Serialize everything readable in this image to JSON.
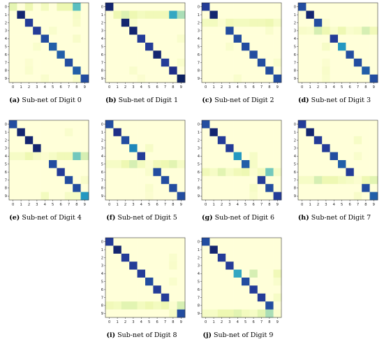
{
  "colormap": [
    "#ffffd9",
    "#edf8b1",
    "#c7e9b4",
    "#7fcdbb",
    "#41b6c4",
    "#1d91c0",
    "#225ea8",
    "#253494",
    "#081d58"
  ],
  "tick_labels": [
    "0",
    "1",
    "2",
    "3",
    "4",
    "5",
    "6",
    "7",
    "8",
    "9"
  ],
  "chart_data": [
    {
      "type": "heatmap",
      "tag": "(a)",
      "title": "Sub-net of Digit 0",
      "x_tick_labels": [
        "0",
        "1",
        "2",
        "3",
        "4",
        "5",
        "6",
        "7",
        "8",
        "9"
      ],
      "y_tick_labels": [
        "0",
        "1",
        "2",
        "3",
        "4",
        "5",
        "6",
        "7",
        "8",
        "9"
      ],
      "diagonal": [
        0.15,
        0.95,
        0.85,
        0.85,
        0.8,
        0.75,
        0.75,
        0.8,
        0.75,
        0.8
      ],
      "off_diagonal": [
        [
          0,
          8,
          0.45
        ],
        [
          0,
          2,
          0.12
        ],
        [
          0,
          6,
          0.12
        ],
        [
          0,
          7,
          0.12
        ],
        [
          0,
          4,
          0.08
        ],
        [
          1,
          8,
          0.06
        ],
        [
          2,
          8,
          0.05
        ],
        [
          4,
          8,
          0.05
        ],
        [
          3,
          5,
          0.04
        ],
        [
          5,
          3,
          0.04
        ],
        [
          8,
          2,
          0.04
        ],
        [
          9,
          4,
          0.04
        ],
        [
          9,
          8,
          0.05
        ],
        [
          7,
          2,
          0.03
        ]
      ]
    },
    {
      "type": "heatmap",
      "tag": "(b)",
      "title": "Sub-net of Digit 1",
      "x_tick_labels": [
        "0",
        "1",
        "2",
        "3",
        "4",
        "5",
        "6",
        "7",
        "8",
        "9"
      ],
      "y_tick_labels": [
        "0",
        "1",
        "2",
        "3",
        "4",
        "5",
        "6",
        "7",
        "8",
        "9"
      ],
      "diagonal": [
        0.95,
        0.12,
        0.95,
        0.95,
        0.85,
        0.85,
        0.95,
        0.85,
        0.9,
        0.98
      ],
      "off_diagonal": [
        [
          1,
          8,
          0.55
        ],
        [
          1,
          9,
          0.3
        ],
        [
          1,
          2,
          0.18
        ],
        [
          1,
          3,
          0.12
        ],
        [
          1,
          6,
          0.1
        ],
        [
          1,
          7,
          0.1
        ],
        [
          1,
          4,
          0.08
        ],
        [
          1,
          5,
          0.1
        ],
        [
          2,
          3,
          0.04
        ],
        [
          4,
          9,
          0.04
        ],
        [
          7,
          9,
          0.04
        ],
        [
          8,
          3,
          0.04
        ],
        [
          9,
          4,
          0.03
        ]
      ]
    },
    {
      "type": "heatmap",
      "tag": "(c)",
      "title": "Sub-net of Digit 2",
      "x_tick_labels": [
        "0",
        "1",
        "2",
        "3",
        "4",
        "5",
        "6",
        "7",
        "8",
        "9"
      ],
      "y_tick_labels": [
        "0",
        "1",
        "2",
        "3",
        "4",
        "5",
        "6",
        "7",
        "8",
        "9"
      ],
      "diagonal": [
        0.85,
        0.95,
        0.03,
        0.8,
        0.8,
        0.8,
        0.8,
        0.8,
        0.8,
        0.8
      ],
      "off_diagonal": [
        [
          2,
          0,
          0.08
        ],
        [
          2,
          1,
          0.08
        ],
        [
          2,
          3,
          0.1
        ],
        [
          2,
          4,
          0.08
        ],
        [
          2,
          5,
          0.08
        ],
        [
          2,
          6,
          0.1
        ],
        [
          2,
          7,
          0.1
        ],
        [
          2,
          8,
          0.12
        ],
        [
          2,
          9,
          0.06
        ],
        [
          3,
          8,
          0.04
        ],
        [
          5,
          3,
          0.04
        ],
        [
          7,
          9,
          0.04
        ],
        [
          9,
          4,
          0.04
        ]
      ]
    },
    {
      "type": "heatmap",
      "tag": "(d)",
      "title": "Sub-net of Digit 3",
      "x_tick_labels": [
        "0",
        "1",
        "2",
        "3",
        "4",
        "5",
        "6",
        "7",
        "8",
        "9"
      ],
      "y_tick_labels": [
        "0",
        "1",
        "2",
        "3",
        "4",
        "5",
        "6",
        "7",
        "8",
        "9"
      ],
      "diagonal": [
        0.8,
        0.95,
        0.8,
        0.12,
        0.85,
        0.6,
        0.8,
        0.8,
        0.75,
        0.8
      ],
      "off_diagonal": [
        [
          3,
          2,
          0.2
        ],
        [
          3,
          5,
          0.12
        ],
        [
          3,
          8,
          0.2
        ],
        [
          3,
          9,
          0.1
        ],
        [
          3,
          0,
          0.05
        ],
        [
          3,
          7,
          0.06
        ],
        [
          3,
          1,
          0.04
        ],
        [
          3,
          4,
          0.04
        ],
        [
          3,
          6,
          0.04
        ],
        [
          5,
          3,
          0.06
        ],
        [
          8,
          3,
          0.05
        ],
        [
          9,
          3,
          0.04
        ],
        [
          7,
          3,
          0.03
        ],
        [
          2,
          3,
          0.03
        ]
      ]
    },
    {
      "type": "heatmap",
      "tag": "(e)",
      "title": "Sub-net of Digit 4",
      "x_tick_labels": [
        "0",
        "1",
        "2",
        "3",
        "4",
        "5",
        "6",
        "7",
        "8",
        "9"
      ],
      "y_tick_labels": [
        "0",
        "1",
        "2",
        "3",
        "4",
        "5",
        "6",
        "7",
        "8",
        "9"
      ],
      "diagonal": [
        0.8,
        0.95,
        0.95,
        0.95,
        0.03,
        0.8,
        0.85,
        0.8,
        0.8,
        0.6
      ],
      "off_diagonal": [
        [
          4,
          8,
          0.4
        ],
        [
          4,
          9,
          0.2
        ],
        [
          4,
          2,
          0.12
        ],
        [
          4,
          0,
          0.06
        ],
        [
          4,
          1,
          0.06
        ],
        [
          4,
          6,
          0.1
        ],
        [
          4,
          7,
          0.1
        ],
        [
          4,
          3,
          0.06
        ],
        [
          4,
          5,
          0.06
        ],
        [
          1,
          7,
          0.04
        ],
        [
          9,
          4,
          0.08
        ],
        [
          9,
          7,
          0.06
        ],
        [
          9,
          8,
          0.06
        ],
        [
          7,
          9,
          0.05
        ]
      ]
    },
    {
      "type": "heatmap",
      "tag": "(f)",
      "title": "Sub-net of Digit 5",
      "x_tick_labels": [
        "0",
        "1",
        "2",
        "3",
        "4",
        "5",
        "6",
        "7",
        "8",
        "9"
      ],
      "y_tick_labels": [
        "0",
        "1",
        "2",
        "3",
        "4",
        "5",
        "6",
        "7",
        "8",
        "9"
      ],
      "diagonal": [
        0.8,
        0.9,
        0.8,
        0.65,
        0.85,
        0.03,
        0.8,
        0.8,
        0.8,
        0.8
      ],
      "off_diagonal": [
        [
          5,
          0,
          0.06
        ],
        [
          5,
          1,
          0.06
        ],
        [
          5,
          2,
          0.12
        ],
        [
          5,
          3,
          0.2
        ],
        [
          5,
          4,
          0.08
        ],
        [
          5,
          6,
          0.1
        ],
        [
          5,
          7,
          0.12
        ],
        [
          5,
          8,
          0.16
        ],
        [
          5,
          9,
          0.06
        ],
        [
          3,
          5,
          0.06
        ],
        [
          8,
          5,
          0.04
        ],
        [
          9,
          5,
          0.03
        ],
        [
          6,
          5,
          0.04
        ]
      ]
    },
    {
      "type": "heatmap",
      "tag": "(g)",
      "title": "Sub-net of Digit 6",
      "x_tick_labels": [
        "0",
        "1",
        "2",
        "3",
        "4",
        "5",
        "6",
        "7",
        "8",
        "9"
      ],
      "y_tick_labels": [
        "0",
        "1",
        "2",
        "3",
        "4",
        "5",
        "6",
        "7",
        "8",
        "9"
      ],
      "diagonal": [
        0.8,
        0.95,
        0.85,
        0.85,
        0.6,
        0.75,
        0.03,
        0.85,
        0.8,
        0.85
      ],
      "off_diagonal": [
        [
          6,
          0,
          0.1
        ],
        [
          6,
          1,
          0.06
        ],
        [
          6,
          2,
          0.16
        ],
        [
          6,
          3,
          0.06
        ],
        [
          6,
          4,
          0.1
        ],
        [
          6,
          5,
          0.12
        ],
        [
          6,
          7,
          0.08
        ],
        [
          6,
          8,
          0.4
        ],
        [
          6,
          9,
          0.06
        ],
        [
          4,
          6,
          0.06
        ],
        [
          5,
          6,
          0.06
        ],
        [
          8,
          6,
          0.06
        ],
        [
          9,
          6,
          0.04
        ]
      ]
    },
    {
      "type": "heatmap",
      "tag": "(h)",
      "title": "Sub-net of Digit 7",
      "x_tick_labels": [
        "0",
        "1",
        "2",
        "3",
        "4",
        "5",
        "6",
        "7",
        "8",
        "9"
      ],
      "y_tick_labels": [
        "0",
        "1",
        "2",
        "3",
        "4",
        "5",
        "6",
        "7",
        "8",
        "9"
      ],
      "diagonal": [
        0.85,
        0.95,
        0.85,
        0.85,
        0.8,
        0.75,
        0.85,
        0.03,
        0.8,
        0.75
      ],
      "off_diagonal": [
        [
          7,
          0,
          0.06
        ],
        [
          7,
          1,
          0.06
        ],
        [
          7,
          2,
          0.2
        ],
        [
          7,
          3,
          0.12
        ],
        [
          7,
          4,
          0.12
        ],
        [
          7,
          5,
          0.08
        ],
        [
          7,
          6,
          0.06
        ],
        [
          7,
          8,
          0.12
        ],
        [
          7,
          9,
          0.16
        ],
        [
          2,
          7,
          0.06
        ],
        [
          9,
          7,
          0.05
        ],
        [
          4,
          7,
          0.04
        ]
      ]
    },
    {
      "type": "heatmap",
      "tag": "(i)",
      "title": "Sub-net of Digit 8",
      "x_tick_labels": [
        "0",
        "1",
        "2",
        "3",
        "4",
        "5",
        "6",
        "7",
        "8",
        "9"
      ],
      "y_tick_labels": [
        "0",
        "1",
        "2",
        "3",
        "4",
        "5",
        "6",
        "7",
        "8",
        "9"
      ],
      "diagonal": [
        0.85,
        0.95,
        0.85,
        0.85,
        0.85,
        0.8,
        0.85,
        0.85,
        0.03,
        0.8
      ],
      "off_diagonal": [
        [
          8,
          0,
          0.1
        ],
        [
          8,
          1,
          0.08
        ],
        [
          8,
          2,
          0.16
        ],
        [
          8,
          3,
          0.16
        ],
        [
          8,
          4,
          0.08
        ],
        [
          8,
          5,
          0.12
        ],
        [
          8,
          6,
          0.08
        ],
        [
          8,
          7,
          0.12
        ],
        [
          8,
          9,
          0.2
        ],
        [
          3,
          8,
          0.05
        ],
        [
          5,
          8,
          0.04
        ],
        [
          9,
          8,
          0.06
        ],
        [
          2,
          8,
          0.04
        ]
      ]
    },
    {
      "type": "heatmap",
      "tag": "(j)",
      "title": "Sub-net of Digit 9",
      "x_tick_labels": [
        "0",
        "1",
        "2",
        "3",
        "4",
        "5",
        "6",
        "7",
        "8",
        "9"
      ],
      "y_tick_labels": [
        "0",
        "1",
        "2",
        "3",
        "4",
        "5",
        "6",
        "7",
        "8",
        "9"
      ],
      "diagonal": [
        0.8,
        0.95,
        0.85,
        0.85,
        0.55,
        0.8,
        0.85,
        0.85,
        0.8,
        0.03
      ],
      "off_diagonal": [
        [
          9,
          0,
          0.06
        ],
        [
          9,
          1,
          0.06
        ],
        [
          9,
          2,
          0.12
        ],
        [
          9,
          3,
          0.12
        ],
        [
          9,
          4,
          0.16
        ],
        [
          9,
          5,
          0.08
        ],
        [
          9,
          6,
          0.06
        ],
        [
          9,
          7,
          0.16
        ],
        [
          9,
          8,
          0.3
        ],
        [
          4,
          6,
          0.2
        ],
        [
          4,
          9,
          0.1
        ],
        [
          7,
          9,
          0.06
        ],
        [
          5,
          9,
          0.04
        ]
      ]
    }
  ]
}
